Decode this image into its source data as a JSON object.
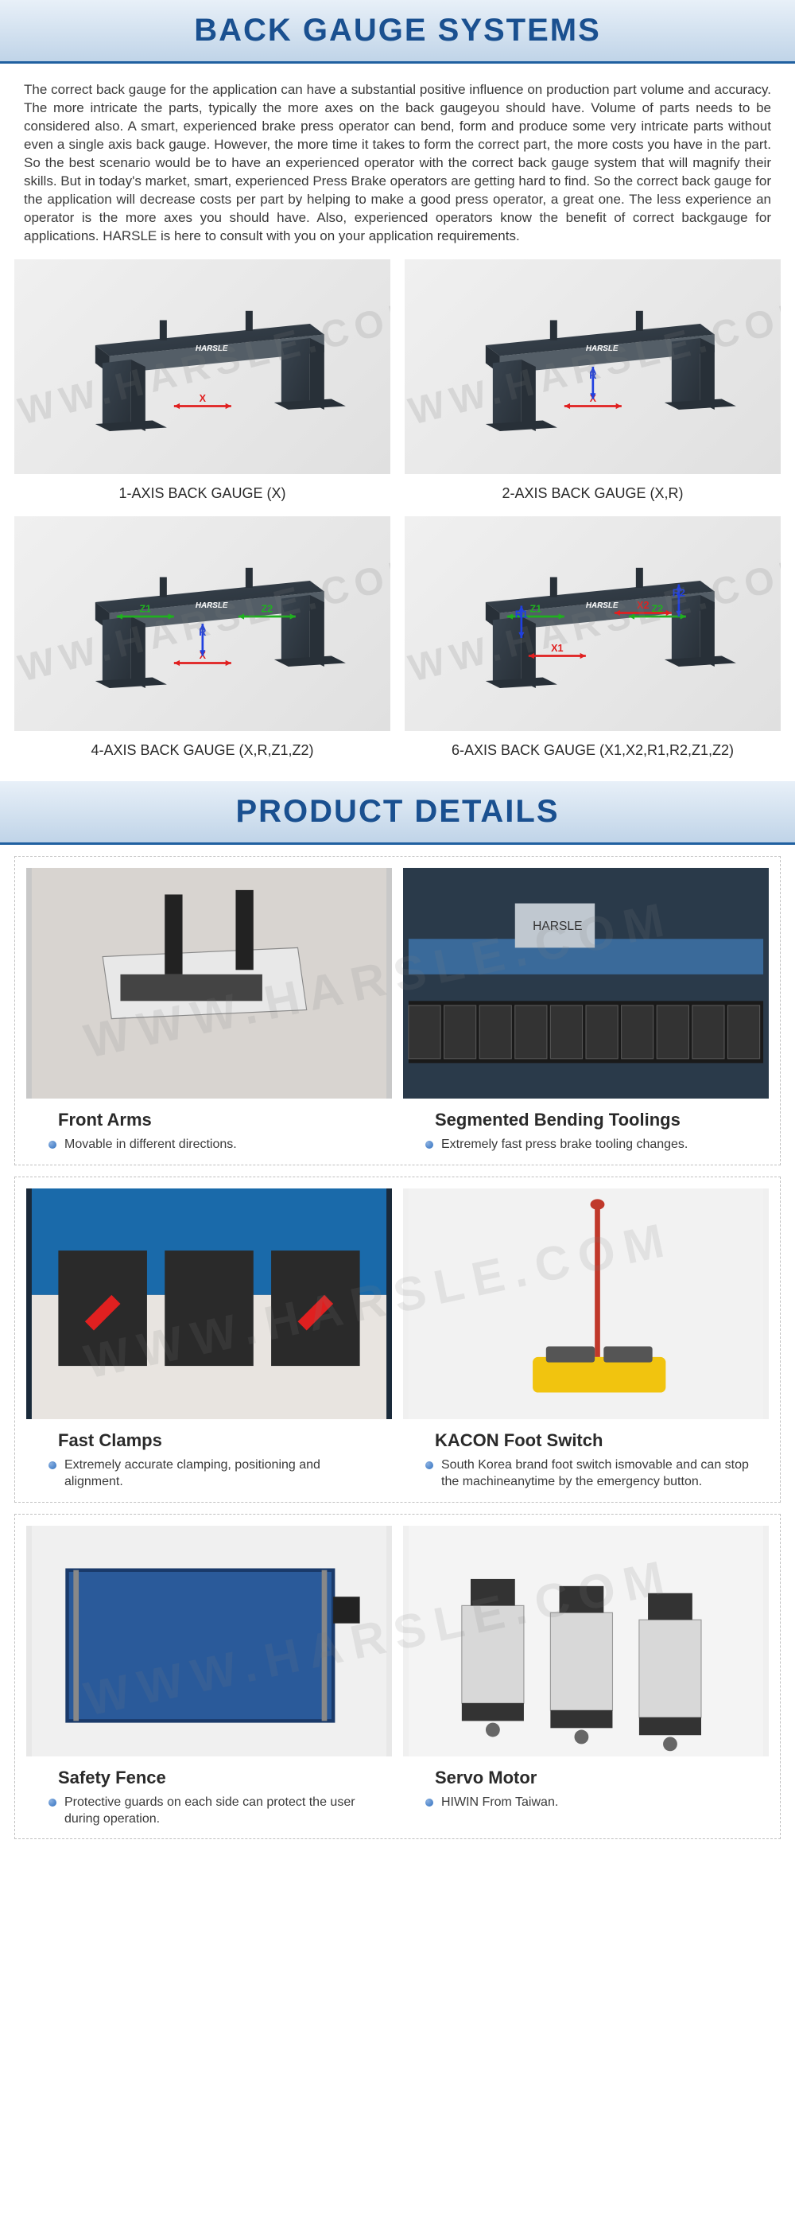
{
  "sections": {
    "back_gauge": {
      "title": "BACK GAUGE SYSTEMS",
      "intro": "The correct back gauge for the application can have a substantial positive influence on production part volume and accuracy. The more intricate the parts, typically the more axes on the back gaugeyou should have. Volume of parts needs to be considered also. A smart, experienced brake press operator can bend, form and produce some very intricate parts without even a single axis back gauge. However, the more time it takes to form the correct part, the more costs you have in the part. So the best scenario would be to have an experienced operator with the correct back gauge system that will magnify their skills. But in today's market, smart, experienced Press Brake operators are getting hard to find. So the correct back gauge for the application will decrease costs per part by helping to make a good press operator, a great one. The less experience an operator is the more axes you should have. Also, experienced operators know the benefit of correct backgauge for applications. HARSLE is here to consult with you on your application requirements."
    },
    "product_details": {
      "title": "PRODUCT DETAILS"
    }
  },
  "watermark": "WWW.HARSLE.COM",
  "gauges": [
    {
      "caption": "1-AXIS BACK GAUGE (X)",
      "axes": [
        "X"
      ]
    },
    {
      "caption": "2-AXIS BACK GAUGE (X,R)",
      "axes": [
        "X",
        "R"
      ]
    },
    {
      "caption": "4-AXIS BACK GAUGE (X,R,Z1,Z2)",
      "axes": [
        "X",
        "R",
        "Z1",
        "Z2"
      ]
    },
    {
      "caption": "6-AXIS BACK GAUGE (X1,X2,R1,R2,Z1,Z2)",
      "axes": [
        "X1",
        "X2",
        "R1",
        "R2",
        "Z1",
        "Z2"
      ]
    }
  ],
  "details": [
    [
      {
        "title": "Front Arms",
        "desc": "Movable in different directions.",
        "img_bg": "#c8c8c8"
      },
      {
        "title": "Segmented  Bending Toolings",
        "desc": "Extremely fast press brake tooling changes.",
        "img_bg": "#2a3a4a"
      }
    ],
    [
      {
        "title": "Fast Clamps",
        "desc": "Extremely accurate clamping, positioning and alignment.",
        "img_bg": "#1a2a3a"
      },
      {
        "title": "KACON Foot Switch",
        "desc": "South Korea brand foot switch ismovable and can stop the machineanytime by the emergency button.",
        "img_bg": "#f0f0f0"
      }
    ],
    [
      {
        "title": "Safety Fence",
        "desc": "Protective guards on each side can protect the user during operation.",
        "img_bg": "#e8e8e8"
      },
      {
        "title": "Servo Motor",
        "desc": "HIWIN From Taiwan.",
        "img_bg": "#f0f0f0"
      }
    ]
  ],
  "colors": {
    "header_text": "#1a5090",
    "header_border": "#2060a0",
    "body_text": "#3a3a3a",
    "arrow_x": "#e02020",
    "arrow_r": "#2040e0",
    "arrow_z": "#20b020",
    "gauge_fill": "#3a4550",
    "gauge_dark": "#283038"
  }
}
